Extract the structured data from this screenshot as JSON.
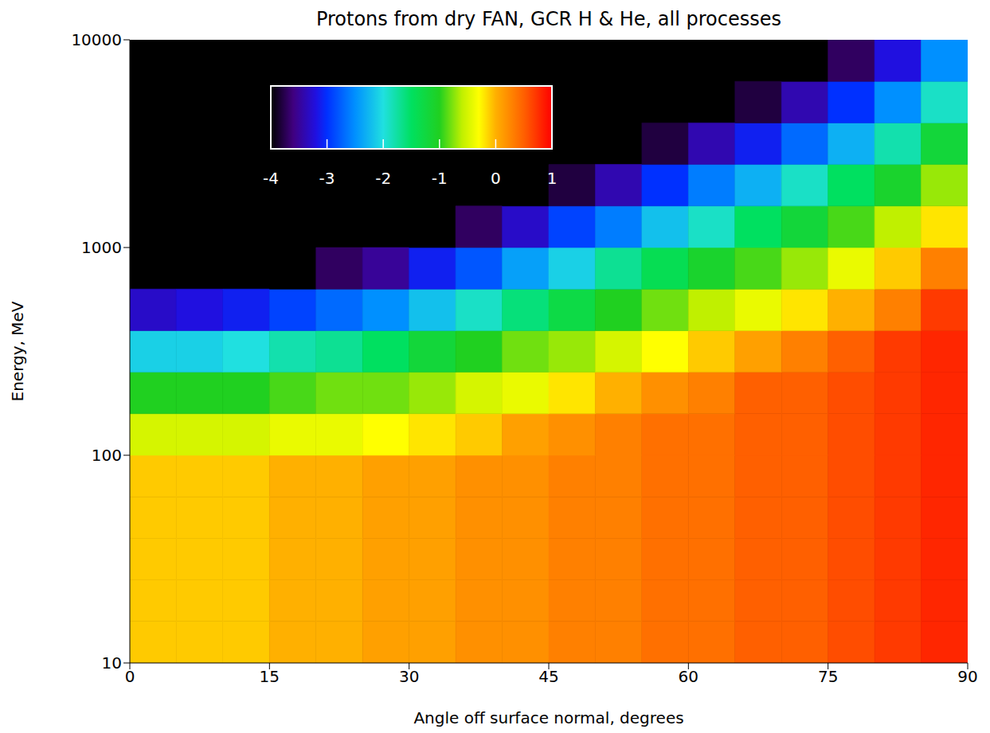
{
  "chart_data": {
    "type": "heatmap",
    "title": "Protons from dry FAN, GCR H & He, all processes",
    "x_label": "Angle off surface normal, degrees",
    "y_label": "Energy, MeV",
    "log": "y",
    "xlim": [
      0,
      90
    ],
    "xticks": [
      0,
      15,
      30,
      45,
      60,
      75,
      90
    ],
    "ylim": [
      10,
      10000
    ],
    "yticks": [
      10,
      100,
      1000,
      10000
    ],
    "x_edges": [
      0,
      5,
      10,
      15,
      20,
      25,
      30,
      35,
      40,
      45,
      50,
      55,
      60,
      65,
      70,
      75,
      80,
      85,
      90
    ],
    "y_edges": [
      10,
      15.85,
      25.12,
      39.81,
      63.1,
      100,
      158.5,
      251.2,
      398.1,
      631,
      1000,
      1585,
      2512,
      3981,
      6310,
      10000
    ],
    "cells": [
      [
        -0.1,
        -0.1,
        -0.1,
        0.0,
        0.0,
        0.1,
        0.1,
        0.2,
        0.2,
        0.3,
        0.3,
        0.4,
        0.4,
        0.5,
        0.5,
        0.6,
        0.7,
        0.8
      ],
      [
        -0.1,
        -0.1,
        -0.1,
        0.0,
        0.0,
        0.1,
        0.1,
        0.2,
        0.2,
        0.3,
        0.3,
        0.4,
        0.4,
        0.5,
        0.5,
        0.6,
        0.7,
        0.8
      ],
      [
        -0.1,
        -0.1,
        -0.1,
        0.0,
        0.0,
        0.1,
        0.1,
        0.2,
        0.2,
        0.3,
        0.3,
        0.4,
        0.4,
        0.5,
        0.5,
        0.6,
        0.7,
        0.8
      ],
      [
        -0.1,
        -0.1,
        -0.1,
        0.0,
        0.0,
        0.1,
        0.1,
        0.2,
        0.2,
        0.3,
        0.3,
        0.4,
        0.4,
        0.5,
        0.5,
        0.6,
        0.7,
        0.8
      ],
      [
        -0.1,
        -0.1,
        -0.1,
        0.0,
        0.0,
        0.1,
        0.1,
        0.2,
        0.2,
        0.3,
        0.3,
        0.4,
        0.4,
        0.5,
        0.5,
        0.6,
        0.7,
        0.8
      ],
      [
        -0.5,
        -0.5,
        -0.5,
        -0.4,
        -0.4,
        -0.3,
        -0.2,
        -0.1,
        0.1,
        0.2,
        0.3,
        0.4,
        0.4,
        0.5,
        0.5,
        0.6,
        0.7,
        0.8
      ],
      [
        -1.0,
        -1.0,
        -1.0,
        -0.9,
        -0.8,
        -0.8,
        -0.7,
        -0.5,
        -0.4,
        -0.2,
        0.0,
        0.2,
        0.3,
        0.5,
        0.5,
        0.6,
        0.7,
        0.8
      ],
      [
        -2.1,
        -2.1,
        -2.0,
        -1.8,
        -1.7,
        -1.5,
        -1.2,
        -1.0,
        -0.8,
        -0.7,
        -0.5,
        -0.3,
        -0.1,
        0.1,
        0.3,
        0.5,
        0.7,
        0.8
      ],
      [
        -3.3,
        -3.2,
        -3.1,
        -2.9,
        -2.7,
        -2.5,
        -2.2,
        -1.9,
        -1.6,
        -1.3,
        -1.0,
        -0.8,
        -0.6,
        -0.4,
        -0.2,
        0.0,
        0.3,
        0.7
      ],
      [
        null,
        null,
        null,
        -4.0,
        -3.7,
        -3.5,
        -3.1,
        -2.8,
        -2.4,
        -2.1,
        -1.7,
        -1.4,
        -1.1,
        -0.9,
        -0.7,
        -0.4,
        -0.1,
        0.3
      ],
      [
        null,
        null,
        null,
        null,
        null,
        null,
        -4.1,
        -3.7,
        -3.3,
        -2.9,
        -2.6,
        -2.2,
        -1.9,
        -1.5,
        -1.2,
        -0.9,
        -0.6,
        -0.2
      ],
      [
        null,
        null,
        null,
        null,
        null,
        null,
        null,
        null,
        -4.1,
        -3.8,
        -3.4,
        -3.0,
        -2.6,
        -2.3,
        -1.9,
        -1.5,
        -1.1,
        -0.7
      ],
      [
        null,
        null,
        null,
        null,
        null,
        null,
        null,
        null,
        null,
        null,
        null,
        -3.8,
        -3.4,
        -3.1,
        -2.7,
        -2.3,
        -1.8,
        -1.2
      ],
      [
        null,
        null,
        null,
        null,
        null,
        null,
        null,
        null,
        null,
        null,
        null,
        null,
        null,
        -3.8,
        -3.4,
        -3.0,
        -2.5,
        -1.9
      ],
      [
        null,
        null,
        null,
        null,
        null,
        null,
        null,
        null,
        null,
        null,
        null,
        null,
        null,
        null,
        -4.1,
        -3.7,
        -3.2,
        -2.5
      ]
    ],
    "colorbar": {
      "range": [
        -4,
        1
      ],
      "ticks": [
        -4,
        -3,
        -2,
        -1,
        0,
        1
      ]
    }
  }
}
